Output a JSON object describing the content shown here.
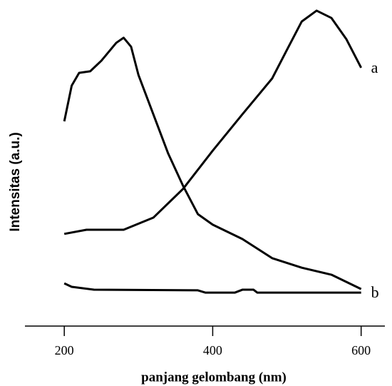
{
  "chart_data": {
    "type": "line",
    "x_label": "panjang gelombang (nm)",
    "y_label": "Intensitas (a.u.)",
    "xlim": [
      147,
      632
    ],
    "xticks": [
      200,
      400,
      600
    ],
    "ylim": [
      0,
      100
    ],
    "series": [
      {
        "name": "a",
        "color": "#000000",
        "x": [
          200,
          230,
          280,
          320,
          360,
          400,
          440,
          480,
          500,
          520,
          540,
          560,
          580,
          600
        ],
        "values": [
          28.9,
          30.2,
          30.2,
          34,
          43,
          55,
          66.4,
          77.6,
          86.6,
          95.5,
          98.9,
          96.6,
          90,
          81
        ]
      },
      {
        "color": "#000000",
        "x": [
          200,
          210,
          220,
          235,
          250,
          270,
          280,
          290,
          300,
          320,
          340,
          360,
          380,
          400,
          440,
          480,
          520,
          560,
          600
        ],
        "values": [
          64.2,
          75.4,
          79.4,
          79.9,
          83.2,
          88.8,
          90.4,
          87.6,
          78.7,
          66.4,
          54.1,
          44,
          35.1,
          31.8,
          27.3,
          21.3,
          18.3,
          16.1,
          11.6
        ]
      },
      {
        "name": "b",
        "color": "#000000",
        "x": [
          200,
          210,
          240,
          380,
          390,
          430,
          440,
          455,
          460,
          600
        ],
        "values": [
          13.4,
          12.3,
          11.4,
          11.2,
          10.5,
          10.5,
          11.4,
          11.4,
          10.5,
          10.5
        ]
      }
    ]
  }
}
